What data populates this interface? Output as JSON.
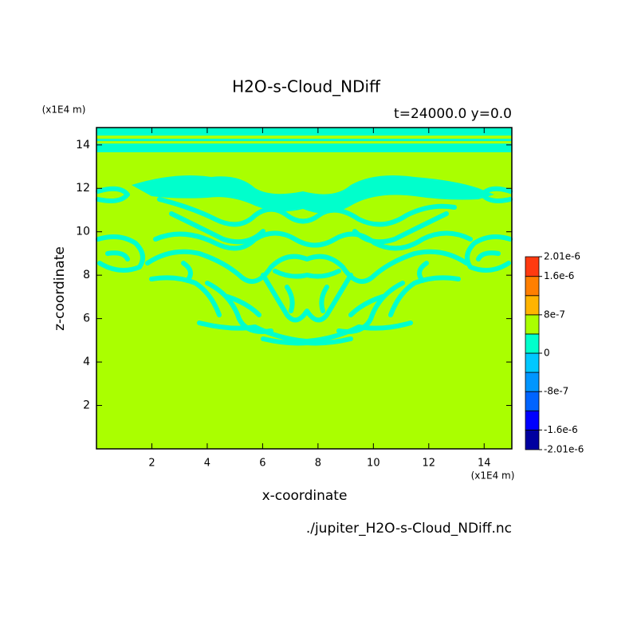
{
  "chart_data": {
    "type": "contour",
    "title": "H2O-s-Cloud_NDiff",
    "subtitle": "t=24000.0 y=0.0",
    "x_label": "x-coordinate",
    "y_label": "z-coordinate",
    "x_unit": "(x1E4 m)",
    "y_unit": "(x1E4 m)",
    "file": "./jupiter_H2O-s-Cloud_NDiff.nc",
    "xlim": [
      0,
      15
    ],
    "ylim": [
      0,
      14.8
    ],
    "xticks": [
      2,
      4,
      6,
      8,
      10,
      12,
      14
    ],
    "yticks": [
      2,
      4,
      6,
      8,
      10,
      12,
      14
    ],
    "colorbar": {
      "levels": [
        -2.01e-06,
        -1.6e-06,
        -1.2e-06,
        -8e-07,
        -4e-07,
        0,
        4e-07,
        8e-07,
        1.2e-06,
        1.6e-06,
        2.01e-06
      ],
      "colors": [
        "#0000a0",
        "#0000ff",
        "#0064ff",
        "#0096ff",
        "#00c8ff",
        "#00ffcc",
        "#aaff00",
        "#ffb400",
        "#ff7f00",
        "#ff3a10"
      ],
      "ticks": [
        {
          "value": -2.01e-06,
          "label": "-2.01e-6"
        },
        {
          "value": -1.6e-06,
          "label": "-1.6e-6"
        },
        -8e-07,
        0,
        8e-07,
        {
          "value": 1.6e-06,
          "label": "1.6e-6"
        },
        {
          "value": 2.01e-06,
          "label": "2.01e-6"
        }
      ]
    }
  }
}
